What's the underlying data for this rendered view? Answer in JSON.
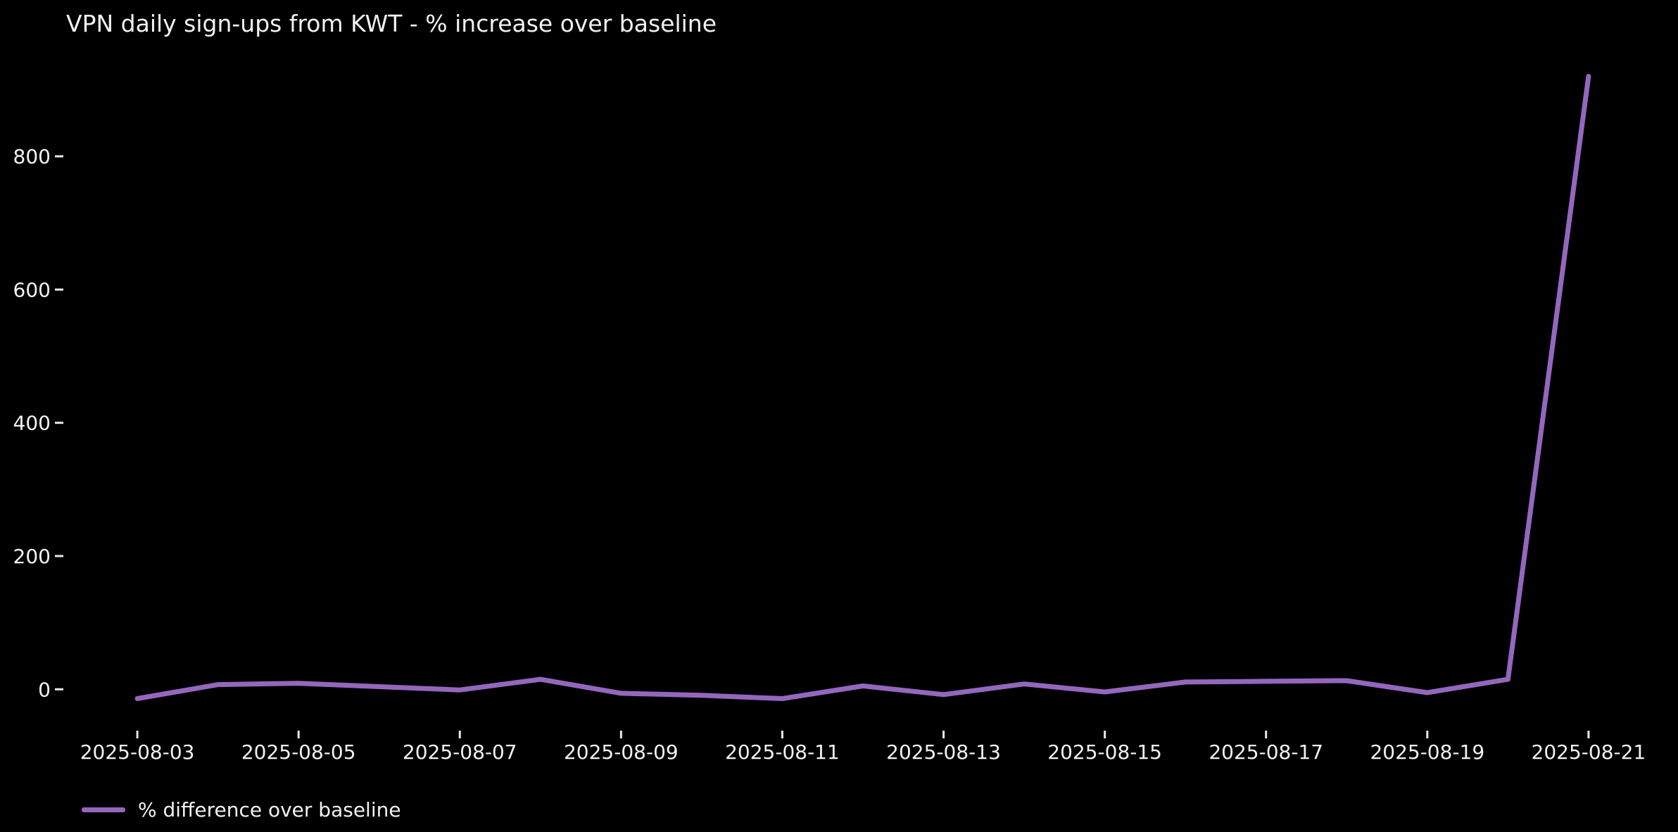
{
  "title": "VPN daily sign-ups from KWT - % increase over baseline",
  "legend": {
    "label": "% difference over baseline"
  },
  "colors": {
    "background": "#000000",
    "text": "#f2f2f2",
    "tick": "#e8e8e8",
    "line": "#9467bd"
  },
  "chart_data": {
    "type": "line",
    "title": "VPN daily sign-ups from KWT - % increase over baseline",
    "xlabel": "",
    "ylabel": "",
    "grid": false,
    "legend_position": "lower-left",
    "x": [
      "2025-08-03",
      "2025-08-04",
      "2025-08-05",
      "2025-08-06",
      "2025-08-07",
      "2025-08-08",
      "2025-08-09",
      "2025-08-10",
      "2025-08-11",
      "2025-08-12",
      "2025-08-13",
      "2025-08-14",
      "2025-08-15",
      "2025-08-16",
      "2025-08-17",
      "2025-08-18",
      "2025-08-19",
      "2025-08-20",
      "2025-08-21"
    ],
    "series": [
      {
        "name": "% difference over baseline",
        "color": "#9467bd",
        "values": [
          -14,
          7,
          9,
          4,
          -1,
          15,
          -6,
          -9,
          -14,
          5,
          -8,
          8,
          -4,
          11,
          12,
          13,
          -5,
          15,
          920
        ]
      }
    ],
    "xtick_labels": [
      "2025-08-03",
      "2025-08-05",
      "2025-08-07",
      "2025-08-09",
      "2025-08-11",
      "2025-08-13",
      "2025-08-15",
      "2025-08-17",
      "2025-08-19",
      "2025-08-21"
    ],
    "yticks": [
      0,
      200,
      400,
      600,
      800
    ],
    "ylim": [
      -61,
      967
    ]
  }
}
